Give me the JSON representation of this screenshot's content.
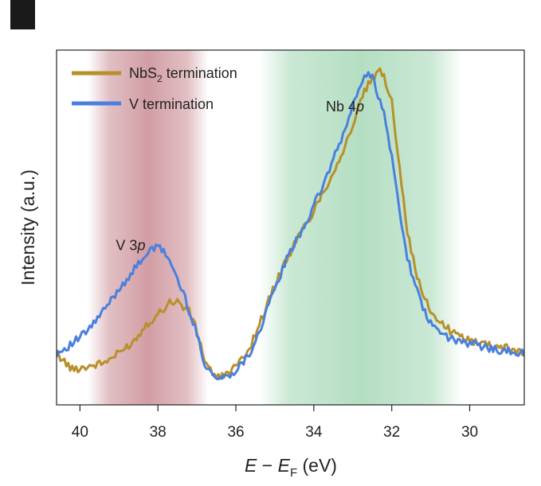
{
  "chart_data": {
    "type": "line",
    "panel_label": "",
    "xlabel": "E − E_F (eV)",
    "xlabel_parts": {
      "E1": "E",
      "minus": " − ",
      "E2": "E",
      "sub": "F",
      "unit": " (eV)"
    },
    "ylabel": "Intensity (a.u.)",
    "xlim": [
      40.6,
      28.6
    ],
    "ylim": [
      0,
      1
    ],
    "x_reversed": true,
    "xticks": [
      40,
      38,
      36,
      34,
      32,
      30
    ],
    "xtick_labels": [
      "40",
      "38",
      "36",
      "34",
      "32",
      "30"
    ],
    "shaded_regions": [
      {
        "name": "V 3p region",
        "x_range": [
          39.8,
          36.7
        ],
        "color": "#c98a92"
      },
      {
        "name": "Nb 4p region",
        "x_range": [
          35.4,
          30.2
        ],
        "color": "#9fd6b2"
      }
    ],
    "annotations": [
      {
        "text": "V 3",
        "italic": "p",
        "x": 38.7,
        "y": 0.44
      },
      {
        "text": "Nb 4",
        "italic": "p",
        "x": 33.2,
        "y": 0.87
      }
    ],
    "legend": {
      "placement": "top-left",
      "entries": [
        {
          "label_main": "NbS",
          "label_sub": "2",
          "label_rest": " termination",
          "color": "#b8902a"
        },
        {
          "label_main": "V termination",
          "label_sub": "",
          "label_rest": "",
          "color": "#4a80dd"
        }
      ]
    },
    "series": [
      {
        "name": "NbS2 termination",
        "color": "#b8902a",
        "x": [
          40.6,
          40.2,
          39.8,
          39.4,
          39.0,
          38.6,
          38.3,
          38.0,
          37.7,
          37.5,
          37.2,
          37.0,
          36.8,
          36.5,
          36.2,
          35.9,
          35.6,
          35.3,
          35.0,
          34.7,
          34.4,
          34.1,
          33.8,
          33.5,
          33.2,
          32.9,
          32.7,
          32.5,
          32.3,
          32.2,
          32.0,
          31.8,
          31.6,
          31.4,
          31.2,
          31.0,
          30.7,
          30.4,
          30.0,
          29.6,
          29.2,
          28.8,
          28.6
        ],
        "y": [
          0.12,
          0.07,
          0.08,
          0.09,
          0.12,
          0.16,
          0.21,
          0.24,
          0.28,
          0.28,
          0.25,
          0.19,
          0.1,
          0.04,
          0.06,
          0.09,
          0.15,
          0.24,
          0.33,
          0.41,
          0.48,
          0.54,
          0.61,
          0.68,
          0.76,
          0.86,
          0.93,
          0.97,
          0.99,
          0.98,
          0.9,
          0.7,
          0.5,
          0.38,
          0.3,
          0.25,
          0.21,
          0.18,
          0.16,
          0.15,
          0.14,
          0.13,
          0.12
        ]
      },
      {
        "name": "V termination",
        "color": "#4a80dd",
        "x": [
          40.6,
          40.2,
          39.8,
          39.4,
          39.0,
          38.6,
          38.3,
          38.0,
          37.8,
          37.6,
          37.3,
          37.0,
          36.8,
          36.5,
          36.2,
          35.9,
          35.6,
          35.3,
          35.0,
          34.7,
          34.4,
          34.1,
          33.8,
          33.5,
          33.2,
          33.0,
          32.8,
          32.6,
          32.5,
          32.4,
          32.2,
          32.0,
          31.8,
          31.6,
          31.4,
          31.2,
          31.0,
          30.7,
          30.4,
          30.0,
          29.6,
          29.2,
          28.8,
          28.6
        ],
        "y": [
          0.12,
          0.15,
          0.19,
          0.25,
          0.32,
          0.38,
          0.43,
          0.45,
          0.43,
          0.38,
          0.29,
          0.18,
          0.09,
          0.04,
          0.05,
          0.08,
          0.13,
          0.22,
          0.32,
          0.41,
          0.48,
          0.55,
          0.63,
          0.72,
          0.81,
          0.89,
          0.95,
          0.99,
          0.98,
          0.94,
          0.86,
          0.73,
          0.56,
          0.42,
          0.33,
          0.26,
          0.21,
          0.18,
          0.16,
          0.15,
          0.14,
          0.13,
          0.12,
          0.12
        ]
      }
    ]
  }
}
